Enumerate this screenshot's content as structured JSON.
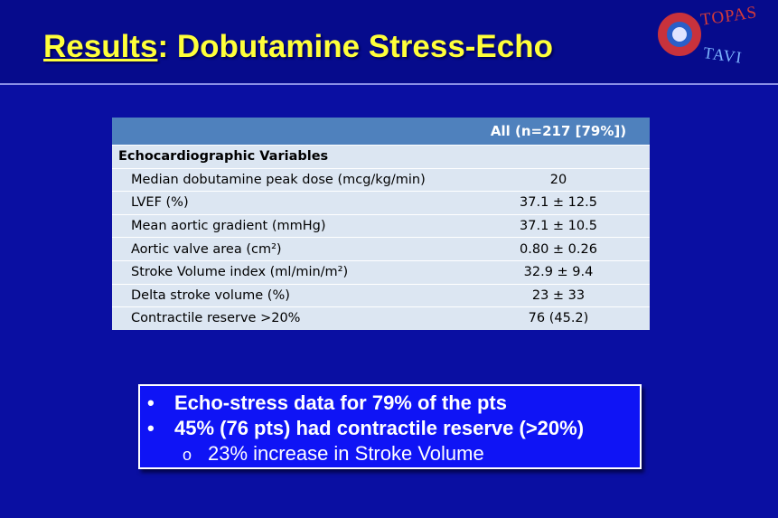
{
  "slide": {
    "title_underlined": "Results",
    "title_rest": ": Dobutamine Stress-Echo"
  },
  "logo": {
    "line1": "TOPAS",
    "line2": "TAVI",
    "colors": {
      "ring": "#c8323c",
      "text1": "#d23a3a",
      "text2": "#7fb6ff"
    }
  },
  "table": {
    "header": [
      "",
      "All (n=217 [79%])"
    ],
    "section": "Echocardiographic Variables",
    "rows": [
      {
        "label": "Median dobutamine peak dose (mcg/kg/min)",
        "value": "20"
      },
      {
        "label": "LVEF (%)",
        "value": "37.1 ± 12.5"
      },
      {
        "label": "Mean aortic gradient (mmHg)",
        "value": "37.1 ± 10.5"
      },
      {
        "label": "Aortic valve area (cm²)",
        "value": "0.80 ± 0.26"
      },
      {
        "label": "Stroke Volume index (ml/min/m²)",
        "value": "32.9 ± 9.4"
      },
      {
        "label": "Delta stroke volume (%)",
        "value": "23 ± 33"
      },
      {
        "label": "Contractile reserve >20%",
        "value": "76 (45.2)"
      }
    ]
  },
  "summary": {
    "bullets": [
      "Echo-stress data for 79% of the pts",
      "45% (76 pts) had contractile reserve (>20%)"
    ],
    "sub_bullets": [
      "23% increase in Stroke Volume"
    ]
  },
  "colors": {
    "background": "#0a0fa2",
    "title": "#ffff3a",
    "table_header": "#4f81bd",
    "table_row": "#dce6f2",
    "box": "#0f14f5"
  }
}
